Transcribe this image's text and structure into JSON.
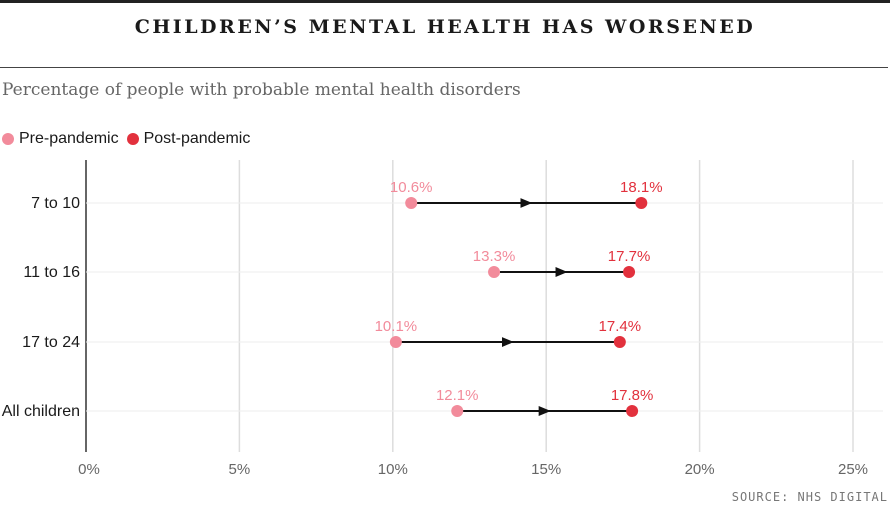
{
  "header": {
    "title": "CHILDREN’S MENTAL HEALTH HAS WORSENED",
    "subtitle": "Percentage of people with probable mental health disorders"
  },
  "legend": {
    "pre_label": "Pre-pandemic",
    "post_label": "Post-pandemic"
  },
  "source": "SOURCE: NHS DIGITAL",
  "colors": {
    "pre": "#f28b9b",
    "post": "#e2313d",
    "arrow": "#111111",
    "grid": "#dddddd",
    "axis": "#333333"
  },
  "chart_data": {
    "type": "dot-arrow",
    "title": "CHILDREN’S MENTAL HEALTH HAS WORSENED",
    "subtitle": "Percentage of people with probable mental health disorders",
    "categories": [
      "7 to 10",
      "11 to 16",
      "17 to 24",
      "All children"
    ],
    "series": [
      {
        "name": "Pre-pandemic",
        "values": [
          10.6,
          13.3,
          10.1,
          12.1
        ],
        "labels": [
          "10.6%",
          "13.3%",
          "10.1%",
          "12.1%"
        ]
      },
      {
        "name": "Post-pandemic",
        "values": [
          18.1,
          17.7,
          17.4,
          17.8
        ],
        "labels": [
          "18.1%",
          "17.7%",
          "17.4%",
          "17.8%"
        ]
      }
    ],
    "xlim": [
      0,
      25
    ],
    "xticks": [
      0,
      5,
      10,
      15,
      20,
      25
    ],
    "xtick_labels": [
      "0%",
      "5%",
      "10%",
      "15%",
      "20%",
      "25%"
    ],
    "grid": true,
    "legend_position": "top-left"
  }
}
